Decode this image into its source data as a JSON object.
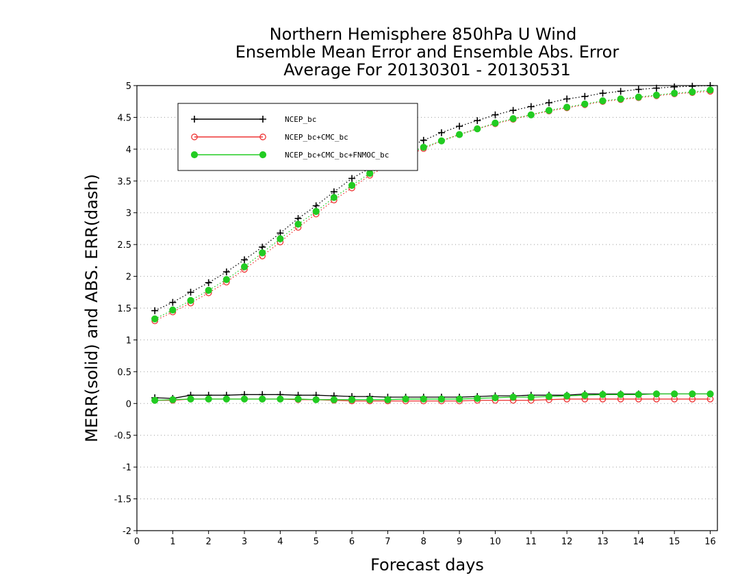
{
  "chart_data": {
    "type": "line",
    "title_lines": [
      "Northern Hemisphere 850hPa U Wind",
      "Ensemble Mean Error and Ensemble Abs. Error",
      "Average For 20130301 - 20130531"
    ],
    "xlabel": "Forecast days",
    "ylabel": "MERR(solid) and ABS. ERR(dash)",
    "xlim": [
      0,
      16.2
    ],
    "ylim": [
      -2,
      5
    ],
    "x_ticks": [
      "0",
      "1",
      "2",
      "3",
      "4",
      "5",
      "6",
      "7",
      "8",
      "9",
      "10",
      "11",
      "12",
      "13",
      "14",
      "15",
      "16"
    ],
    "y_ticks": [
      "5",
      "4.5",
      "4",
      "3.5",
      "3",
      "2.5",
      "2",
      "1.5",
      "1",
      "0.5",
      "0",
      "-0.5",
      "-1",
      "-1.5",
      "-2"
    ],
    "grid": "horizontal dotted",
    "legend_position": "top-left",
    "x": [
      0.5,
      1,
      1.5,
      2,
      2.5,
      3,
      3.5,
      4,
      4.5,
      5,
      5.5,
      6,
      6.5,
      7,
      7.5,
      8,
      8.5,
      9,
      9.5,
      10,
      10.5,
      11,
      11.5,
      12,
      12.5,
      13,
      13.5,
      14,
      14.5,
      15,
      15.5,
      16
    ],
    "series": [
      {
        "name": "NCEP_bc",
        "color": "#000000",
        "marker": "plus",
        "mean_error": [
          0.09,
          0.08,
          0.13,
          0.13,
          0.13,
          0.14,
          0.14,
          0.14,
          0.13,
          0.13,
          0.12,
          0.11,
          0.11,
          0.1,
          0.1,
          0.1,
          0.1,
          0.1,
          0.11,
          0.12,
          0.12,
          0.13,
          0.13,
          0.13,
          0.15,
          0.15,
          0.15,
          0.15,
          0.15,
          0.15,
          0.15,
          0.15
        ],
        "abs_error": [
          1.46,
          1.59,
          1.75,
          1.9,
          2.07,
          2.26,
          2.46,
          2.68,
          2.91,
          3.11,
          3.33,
          3.54,
          3.7,
          3.88,
          4.02,
          4.14,
          4.26,
          4.36,
          4.45,
          4.54,
          4.61,
          4.67,
          4.73,
          4.79,
          4.83,
          4.88,
          4.91,
          4.94,
          4.96,
          4.98,
          4.99,
          5.0
        ]
      },
      {
        "name": "NCEP_bc+CMC_bc",
        "color": "#ee3333",
        "marker": "open-circle",
        "mean_error": [
          0.05,
          0.05,
          0.07,
          0.07,
          0.07,
          0.07,
          0.07,
          0.07,
          0.06,
          0.06,
          0.05,
          0.04,
          0.04,
          0.04,
          0.04,
          0.04,
          0.04,
          0.04,
          0.05,
          0.05,
          0.05,
          0.05,
          0.06,
          0.07,
          0.07,
          0.07,
          0.07,
          0.07,
          0.07,
          0.07,
          0.07,
          0.07
        ],
        "abs_error": [
          1.3,
          1.44,
          1.58,
          1.74,
          1.91,
          2.11,
          2.32,
          2.54,
          2.77,
          2.98,
          3.2,
          3.39,
          3.59,
          3.74,
          3.89,
          4.01,
          4.13,
          4.23,
          4.32,
          4.4,
          4.47,
          4.54,
          4.6,
          4.65,
          4.7,
          4.75,
          4.78,
          4.81,
          4.84,
          4.87,
          4.89,
          4.91
        ]
      },
      {
        "name": "NCEP_bc+CMC_bc+FNMOC_bc",
        "color": "#22cc22",
        "marker": "filled-circle",
        "mean_error": [
          0.05,
          0.06,
          0.07,
          0.07,
          0.07,
          0.07,
          0.07,
          0.07,
          0.07,
          0.06,
          0.06,
          0.06,
          0.06,
          0.06,
          0.07,
          0.07,
          0.07,
          0.07,
          0.08,
          0.09,
          0.1,
          0.1,
          0.11,
          0.12,
          0.13,
          0.14,
          0.14,
          0.14,
          0.15,
          0.15,
          0.15,
          0.15
        ],
        "abs_error": [
          1.33,
          1.47,
          1.62,
          1.78,
          1.95,
          2.15,
          2.37,
          2.59,
          2.82,
          3.02,
          3.24,
          3.43,
          3.62,
          3.78,
          3.92,
          4.03,
          4.13,
          4.23,
          4.32,
          4.41,
          4.48,
          4.54,
          4.61,
          4.66,
          4.71,
          4.76,
          4.79,
          4.82,
          4.85,
          4.88,
          4.9,
          4.93
        ]
      }
    ]
  }
}
